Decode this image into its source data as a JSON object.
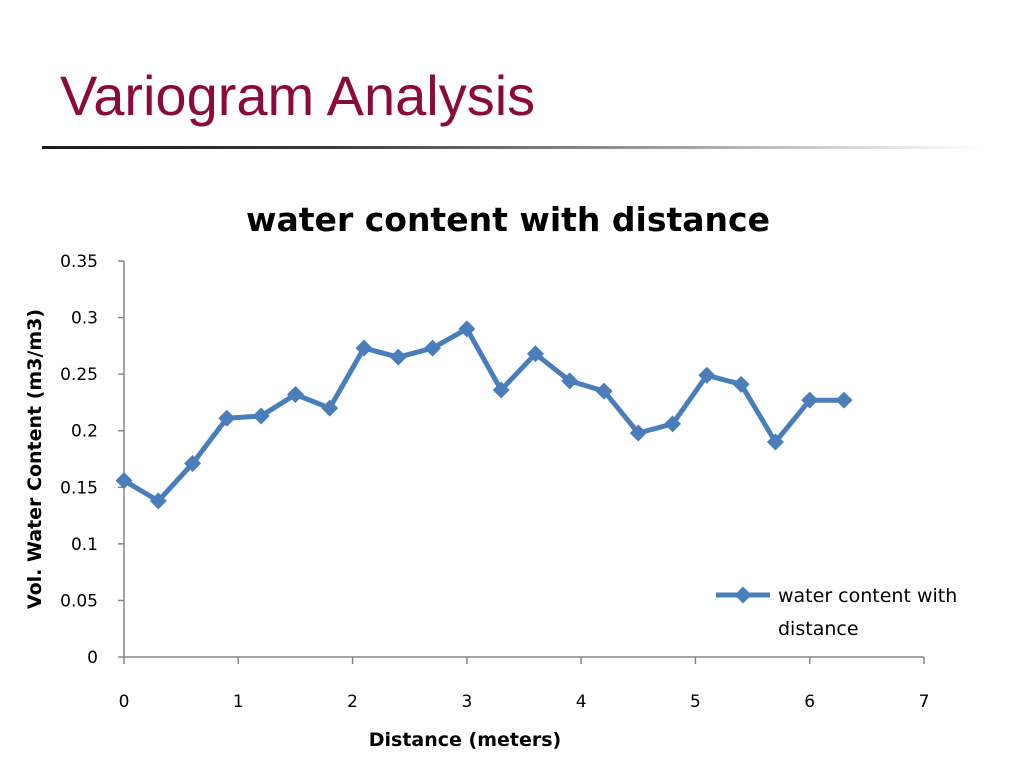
{
  "slide": {
    "title": "Variogram Analysis"
  },
  "colors": {
    "title": "#8b0a3c",
    "series": "#4a7ebb"
  },
  "chart_data": {
    "type": "line",
    "title": "water content with distance",
    "xlabel": "Distance (meters)",
    "ylabel": "Vol. Water Content (m3/m3)",
    "xlim": [
      0,
      7
    ],
    "ylim": [
      0,
      0.35
    ],
    "xticks": [
      "0",
      "1",
      "2",
      "3",
      "4",
      "5",
      "6",
      "7"
    ],
    "yticks": [
      "0",
      "0.05",
      "0.1",
      "0.15",
      "0.2",
      "0.25",
      "0.3",
      "0.35"
    ],
    "legend": {
      "position": "right",
      "lines": [
        "water content with",
        "distance"
      ]
    },
    "series": [
      {
        "name": "water content with distance",
        "marker": "diamond",
        "x": [
          0,
          0.3,
          0.6,
          0.9,
          1.2,
          1.5,
          1.8,
          2.1,
          2.4,
          2.7,
          3.0,
          3.3,
          3.6,
          3.9,
          4.2,
          4.5,
          4.8,
          5.1,
          5.4,
          5.7,
          6.0,
          6.3
        ],
        "y": [
          0.156,
          0.138,
          0.171,
          0.211,
          0.213,
          0.232,
          0.22,
          0.273,
          0.265,
          0.273,
          0.29,
          0.236,
          0.268,
          0.244,
          0.235,
          0.198,
          0.206,
          0.249,
          0.241,
          0.19,
          0.227,
          0.227
        ]
      }
    ]
  }
}
